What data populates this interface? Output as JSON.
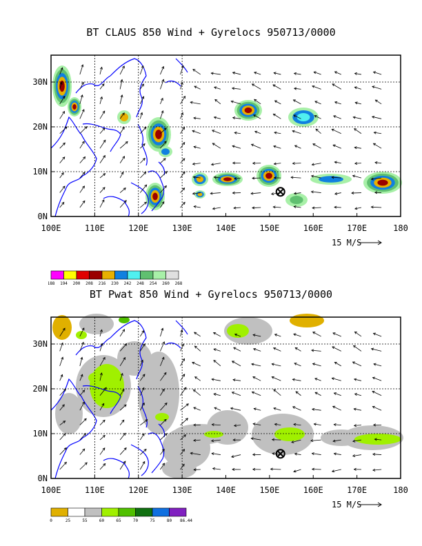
{
  "panel1": {
    "title": "BT CLAUS 850 Wind + Gyrelocs 950713/0000",
    "lon_labels": [
      "100E",
      "110E",
      "120E",
      "130E",
      "140E",
      "150E",
      "160E",
      "170E",
      "180"
    ],
    "lat_labels": [
      "30N",
      "20N",
      "10N",
      "0N"
    ],
    "ref_vector": "15 M/S",
    "colorbar": {
      "colors": [
        "#ff00ff",
        "#ffff00",
        "#e00000",
        "#9a0000",
        "#e8b000",
        "#1080e0",
        "#50f0f0",
        "#60c070",
        "#a8f0a8",
        "#e0e0e0"
      ],
      "labels": [
        "188",
        "194",
        "200",
        "208",
        "216",
        "230",
        "242",
        "248",
        "254",
        "260",
        "268"
      ]
    }
  },
  "panel2": {
    "title": "BT Pwat 850 Wind + Gyrelocs 950713/0000",
    "lon_labels": [
      "100E",
      "110E",
      "120E",
      "130E",
      "140E",
      "150E",
      "160E",
      "170E",
      "180"
    ],
    "lat_labels": [
      "30N",
      "20N",
      "10N",
      "0N"
    ],
    "ref_vector": "15 M/S",
    "colorbar": {
      "colors": [
        "#e0b000",
        "#ffffff",
        "#c0c0c0",
        "#a0f000",
        "#50c000",
        "#107010",
        "#1070e0",
        "#8020c0"
      ],
      "labels": [
        "0",
        "25",
        "55",
        "60",
        "65",
        "70",
        "75",
        "80",
        "86.44"
      ]
    }
  },
  "colors": {
    "coast": "#0000ff",
    "frame": "#000000",
    "grid": "#000000"
  }
}
